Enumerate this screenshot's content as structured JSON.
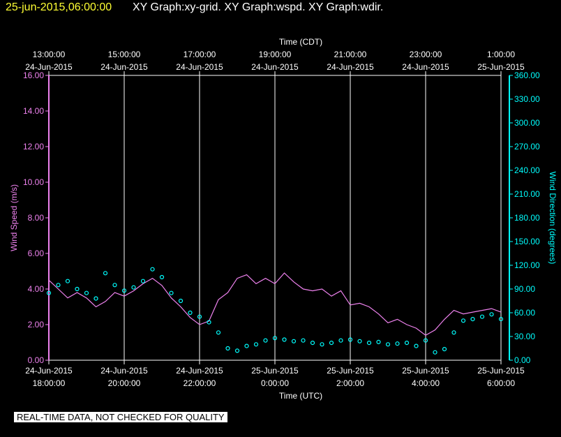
{
  "header": {
    "datetime": "25-jun-2015,06:00:00",
    "titles": "XY Graph:xy-grid.  XY Graph:wspd.  XY Graph:wdir."
  },
  "disclaimer": "REAL-TIME DATA, NOT CHECKED FOR QUALITY",
  "colors": {
    "background": "#000000",
    "grid": "#ffffff",
    "wind_speed": "#ee82ee",
    "wind_direction": "#00ffff",
    "header_date": "#ffff33"
  },
  "chart_data": {
    "type": "line",
    "top_axis": {
      "title": "Time (CDT)",
      "ticks": [
        {
          "time": "13:00:00",
          "date": "24-Jun-2015"
        },
        {
          "time": "15:00:00",
          "date": "24-Jun-2015"
        },
        {
          "time": "17:00:00",
          "date": "24-Jun-2015"
        },
        {
          "time": "19:00:00",
          "date": "24-Jun-2015"
        },
        {
          "time": "21:00:00",
          "date": "24-Jun-2015"
        },
        {
          "time": "23:00:00",
          "date": "24-Jun-2015"
        },
        {
          "time": "1:00:00",
          "date": "25-Jun-2015"
        }
      ]
    },
    "bottom_axis": {
      "title": "Time (UTC)",
      "ticks": [
        {
          "date": "24-Jun-2015",
          "time": "18:00:00"
        },
        {
          "date": "24-Jun-2015",
          "time": "20:00:00"
        },
        {
          "date": "24-Jun-2015",
          "time": "22:00:00"
        },
        {
          "date": "25-Jun-2015",
          "time": "0:00:00"
        },
        {
          "date": "25-Jun-2015",
          "time": "2:00:00"
        },
        {
          "date": "25-Jun-2015",
          "time": "4:00:00"
        },
        {
          "date": "25-Jun-2015",
          "time": "6:00:00"
        }
      ]
    },
    "left_axis": {
      "title": "Wind Speed (m/s)",
      "ylim": [
        0,
        16
      ],
      "ticks": [
        "0.00",
        "2.00",
        "4.00",
        "6.00",
        "8.00",
        "10.00",
        "12.00",
        "14.00",
        "16.00"
      ]
    },
    "right_axis": {
      "title": "Wind Direction (degrees)",
      "ylim": [
        0,
        360
      ],
      "ticks": [
        "0.00",
        "30.00",
        "60.00",
        "90.00",
        "120.00",
        "150.00",
        "180.00",
        "210.00",
        "240.00",
        "270.00",
        "300.00",
        "330.00",
        "360.00"
      ]
    },
    "x_range_hours_utc": [
      18,
      30
    ],
    "grid": true,
    "series": [
      {
        "name": "Wind Speed (m/s)",
        "kind": "line",
        "axis": "left",
        "x_hours_utc": [
          18.0,
          18.25,
          18.5,
          18.75,
          19.0,
          19.25,
          19.5,
          19.75,
          20.0,
          20.25,
          20.5,
          20.75,
          21.0,
          21.25,
          21.5,
          21.75,
          22.0,
          22.25,
          22.5,
          22.75,
          23.0,
          23.25,
          23.5,
          23.75,
          24.0,
          24.25,
          24.5,
          24.75,
          25.0,
          25.25,
          25.5,
          25.75,
          26.0,
          26.25,
          26.5,
          26.75,
          27.0,
          27.25,
          27.5,
          27.75,
          28.0,
          28.25,
          28.5,
          28.75,
          29.0,
          29.25,
          29.5,
          29.75,
          30.0
        ],
        "values": [
          4.5,
          4.0,
          3.5,
          3.8,
          3.5,
          3.0,
          3.3,
          3.8,
          3.6,
          3.9,
          4.3,
          4.6,
          4.2,
          3.5,
          3.0,
          2.4,
          2.0,
          2.2,
          3.4,
          3.8,
          4.6,
          4.8,
          4.3,
          4.6,
          4.3,
          4.9,
          4.4,
          4.0,
          3.9,
          4.0,
          3.6,
          3.9,
          3.1,
          3.2,
          3.0,
          2.6,
          2.1,
          2.3,
          2.0,
          1.8,
          1.4,
          1.7,
          2.3,
          2.8,
          2.6,
          2.7,
          2.8,
          2.9,
          2.7
        ]
      },
      {
        "name": "Wind Direction (degrees)",
        "kind": "scatter",
        "axis": "right",
        "x_hours_utc": [
          18.0,
          18.25,
          18.5,
          18.75,
          19.0,
          19.25,
          19.5,
          19.75,
          20.0,
          20.25,
          20.5,
          20.75,
          21.0,
          21.25,
          21.5,
          21.75,
          22.0,
          22.25,
          22.5,
          22.75,
          23.0,
          23.25,
          23.5,
          23.75,
          24.0,
          24.25,
          24.5,
          24.75,
          25.0,
          25.25,
          25.5,
          25.75,
          26.0,
          26.25,
          26.5,
          26.75,
          27.0,
          27.25,
          27.5,
          27.75,
          28.0,
          28.25,
          28.5,
          28.75,
          29.0,
          29.25,
          29.5,
          29.75,
          30.0
        ],
        "values": [
          85,
          95,
          100,
          90,
          85,
          78,
          110,
          95,
          88,
          92,
          100,
          115,
          105,
          85,
          75,
          60,
          55,
          48,
          35,
          15,
          12,
          18,
          20,
          25,
          28,
          26,
          24,
          25,
          22,
          20,
          22,
          25,
          26,
          24,
          22,
          23,
          20,
          21,
          22,
          18,
          25,
          10,
          14,
          35,
          50,
          52,
          55,
          58,
          52
        ]
      }
    ]
  }
}
